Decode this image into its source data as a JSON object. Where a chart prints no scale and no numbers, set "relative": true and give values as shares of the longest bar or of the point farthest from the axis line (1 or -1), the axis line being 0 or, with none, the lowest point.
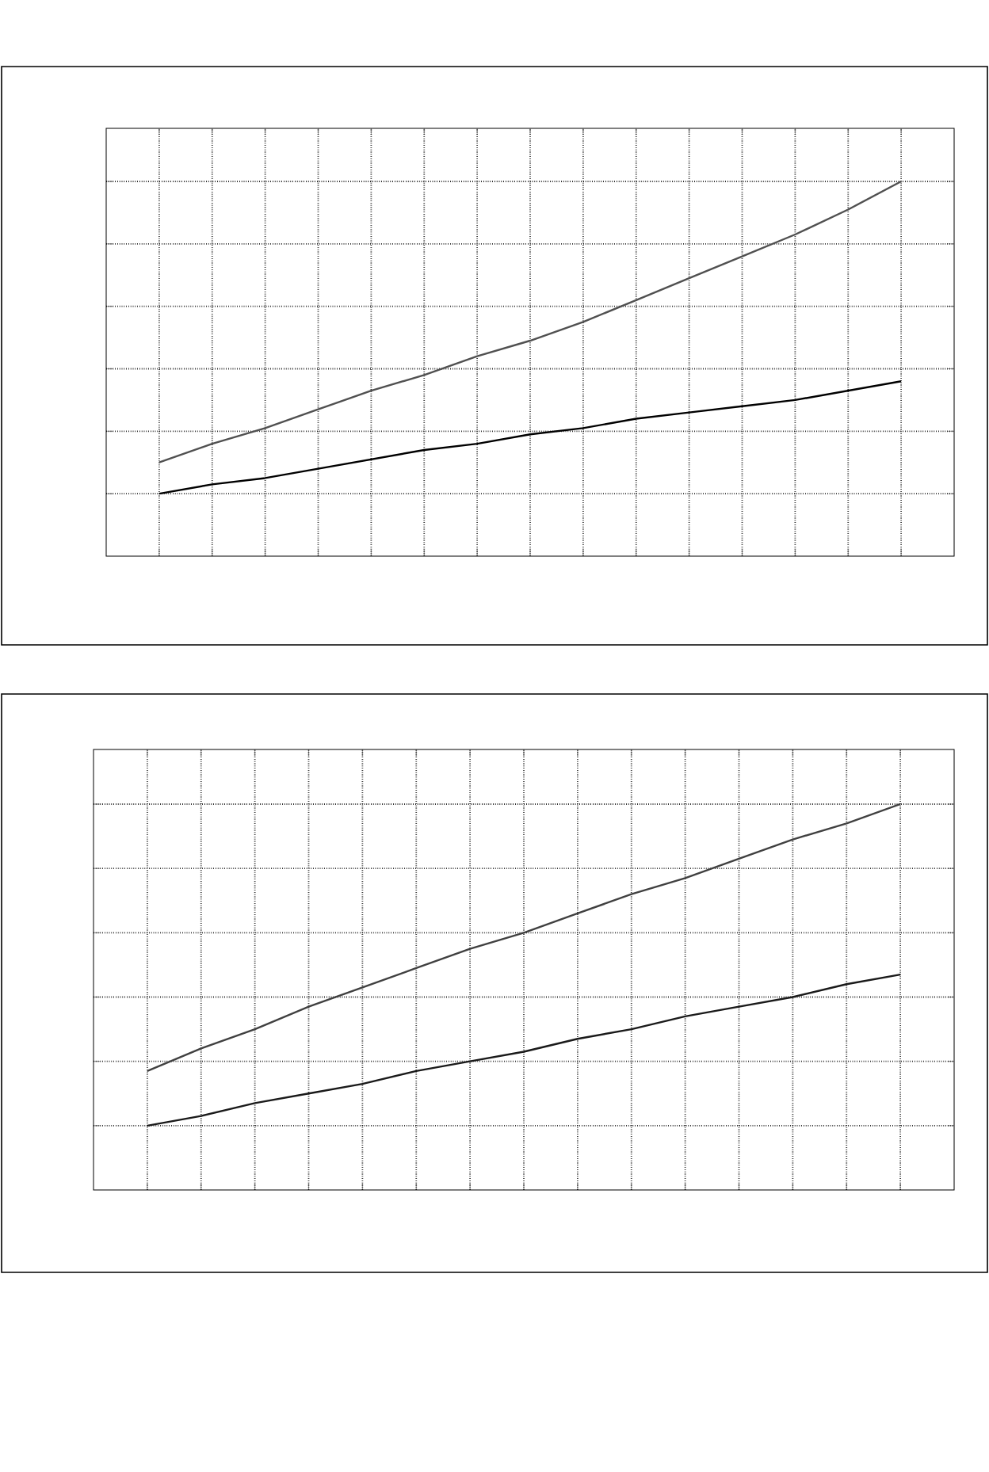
{
  "chart_data": [
    {
      "type": "line",
      "relative": true,
      "grid": true,
      "categories": [
        null,
        null,
        null,
        null,
        null,
        null,
        null,
        null,
        null,
        null,
        null,
        null,
        null,
        null,
        null
      ],
      "series": [
        {
          "color": "#505050",
          "values": [
            0.1,
            0.16,
            0.21,
            0.27,
            0.33,
            0.38,
            0.44,
            0.49,
            0.55,
            0.62,
            0.69,
            0.76,
            0.83,
            0.91,
            1
          ]
        },
        {
          "color": "#000000",
          "values": [
            0,
            0.03,
            0.05,
            0.08,
            0.11,
            0.14,
            0.16,
            0.19,
            0.21,
            0.24,
            0.26,
            0.28,
            0.3,
            0.33,
            0.36
          ]
        }
      ]
    },
    {
      "type": "line",
      "relative": true,
      "grid": true,
      "categories": [
        null,
        null,
        null,
        null,
        null,
        null,
        null,
        null,
        null,
        null,
        null,
        null,
        null,
        null,
        null
      ],
      "series": [
        {
          "color": "#404040",
          "values": [
            0.17,
            0.24,
            0.3,
            0.37,
            0.43,
            0.49,
            0.55,
            0.6,
            0.66,
            0.72,
            0.77,
            0.83,
            0.89,
            0.94,
            1
          ]
        },
        {
          "color": "#1a1a1a",
          "values": [
            0,
            0.03,
            0.07,
            0.1,
            0.13,
            0.17,
            0.2,
            0.23,
            0.27,
            0.3,
            0.34,
            0.37,
            0.4,
            0.44,
            0.47
          ]
        }
      ]
    }
  ]
}
